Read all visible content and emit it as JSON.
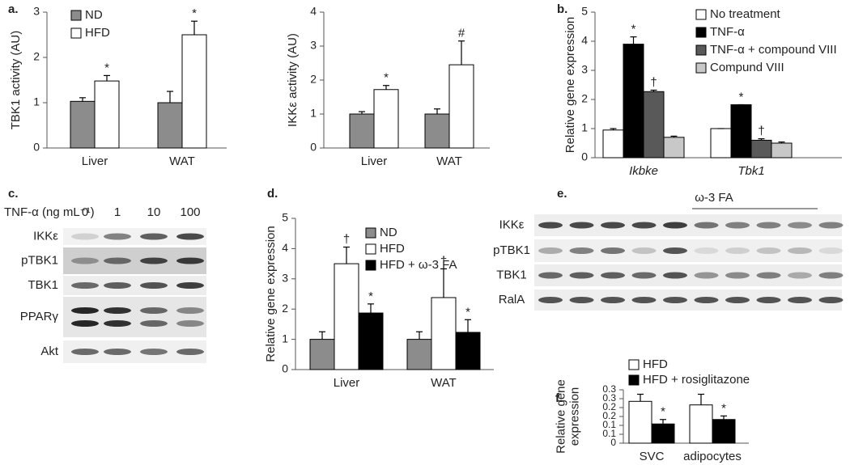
{
  "panel_labels": [
    "a.",
    "b.",
    "c.",
    "d.",
    "e.",
    "f."
  ],
  "chart_data": [
    {
      "type": "bar",
      "y_label": "TBK1 activity (AU)",
      "categories": [
        "Liver",
        "WAT"
      ],
      "ylim": [
        0,
        3
      ],
      "yticks": [
        0,
        1,
        2,
        3
      ],
      "series": [
        {
          "name": "ND",
          "color": "#8c8c8c",
          "values": [
            1.03,
            1.0
          ],
          "errors": [
            0.08,
            0.25
          ],
          "annotations": [
            null,
            null
          ]
        },
        {
          "name": "HFD",
          "color": "#ffffff",
          "values": [
            1.48,
            2.5
          ],
          "errors": [
            0.12,
            0.3
          ],
          "annotations": [
            "*",
            "*"
          ]
        }
      ]
    },
    {
      "type": "bar",
      "y_label": "IKKε activity (AU)",
      "categories": [
        "Liver",
        "WAT"
      ],
      "ylim": [
        0,
        4
      ],
      "yticks": [
        0,
        1,
        2,
        3,
        4
      ],
      "series": [
        {
          "name": "ND",
          "color": "#8c8c8c",
          "values": [
            1.0,
            1.0
          ],
          "errors": [
            0.07,
            0.15
          ],
          "annotations": [
            null,
            null
          ]
        },
        {
          "name": "HFD",
          "color": "#ffffff",
          "values": [
            1.72,
            2.45
          ],
          "errors": [
            0.12,
            0.7
          ],
          "annotations": [
            "*",
            "#"
          ]
        }
      ]
    },
    {
      "type": "bar",
      "y_label": "Relative gene expression",
      "categories": [
        "Ikbke",
        "Tbk1"
      ],
      "ylim": [
        0,
        5
      ],
      "yticks": [
        0,
        1,
        2,
        3,
        4,
        5
      ],
      "series": [
        {
          "name": "No treatment",
          "color": "#ffffff",
          "values": [
            0.95,
            1.0
          ],
          "errors": [
            0.05,
            0
          ],
          "annotations": [
            null,
            null
          ]
        },
        {
          "name": "TNF-α",
          "color": "#000000",
          "values": [
            3.9,
            1.82
          ],
          "errors": [
            0.25,
            0
          ],
          "annotations": [
            "*",
            "*"
          ]
        },
        {
          "name": "TNF-α + compound VIII",
          "color": "#595959",
          "values": [
            2.27,
            0.6
          ],
          "errors": [
            0.05,
            0.05
          ],
          "annotations": [
            "†",
            "†"
          ]
        },
        {
          "name": "Compund VIII",
          "color": "#c8c8c8",
          "values": [
            0.7,
            0.5
          ],
          "errors": [
            0.04,
            0.04
          ],
          "annotations": [
            null,
            null
          ]
        }
      ]
    },
    {
      "type": "bar",
      "y_label": "Relative gene expression",
      "categories": [
        "Liver",
        "WAT"
      ],
      "ylim": [
        0,
        5
      ],
      "yticks": [
        0,
        1,
        2,
        3,
        4,
        5
      ],
      "series": [
        {
          "name": "ND",
          "color": "#8c8c8c",
          "values": [
            1.0,
            1.0
          ],
          "errors": [
            0.25,
            0.25
          ],
          "annotations": [
            null,
            null
          ]
        },
        {
          "name": "HFD",
          "color": "#ffffff",
          "values": [
            3.5,
            2.38
          ],
          "errors": [
            0.55,
            0.95
          ],
          "annotations": [
            "†",
            "†"
          ]
        },
        {
          "name": "HFD + ω-3 FA",
          "color": "#000000",
          "values": [
            1.87,
            1.23
          ],
          "errors": [
            0.3,
            0.42
          ],
          "annotations": [
            "*",
            "*"
          ]
        }
      ]
    },
    {
      "type": "bar",
      "y_label": [
        "Relative gene",
        "expression"
      ],
      "categories": [
        "SVC",
        "adipocytes"
      ],
      "ylim": [
        0,
        0.3
      ],
      "yticks": [
        0,
        {
          "value": 0.05,
          "label": "0.1"
        },
        0.1,
        {
          "value": 0.15,
          "label": "0.2"
        },
        0.2,
        {
          "value": 0.25,
          "label": "0.3"
        },
        0.3
      ],
      "series": [
        {
          "name": "HFD",
          "color": "#ffffff",
          "values": [
            0.235,
            0.215
          ],
          "errors": [
            0.04,
            0.06
          ],
          "annotations": [
            null,
            null
          ]
        },
        {
          "name": "HFD + rosiglitazone",
          "color": "#000000",
          "values": [
            0.108,
            0.133
          ],
          "errors": [
            0.025,
            0.02
          ],
          "annotations": [
            "*",
            "*"
          ]
        }
      ]
    }
  ],
  "blots": [
    {
      "title": "TNF-α (ng mL⁻¹)",
      "lanes": [
        "0",
        "1",
        "10",
        "100"
      ],
      "rows": [
        "IKKε",
        "pTBK1",
        "TBK1",
        "PPARγ",
        "Akt"
      ]
    },
    {
      "label": "ω-3 FA",
      "rows": [
        "IKKε",
        "pTBK1",
        "TBK1",
        "RalA"
      ]
    }
  ]
}
